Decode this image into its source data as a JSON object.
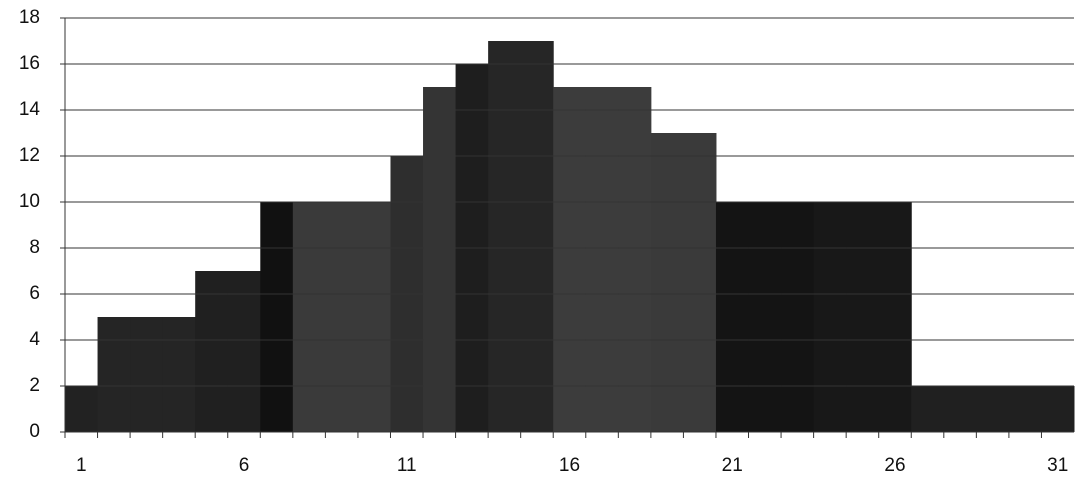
{
  "chart_data": {
    "type": "bar",
    "categories": [
      1,
      null,
      null,
      null,
      null,
      6,
      null,
      null,
      null,
      null,
      11,
      null,
      null,
      null,
      null,
      16,
      null,
      null,
      null,
      null,
      21,
      null,
      null,
      null,
      null,
      26,
      null,
      null,
      null,
      null,
      31
    ],
    "values": [
      2,
      5,
      5,
      5,
      7,
      7,
      10,
      10,
      10,
      10,
      12,
      15,
      16,
      17,
      17,
      15,
      15,
      15,
      13,
      13,
      10,
      10,
      10,
      10,
      10,
      10,
      2,
      2,
      2,
      2,
      2
    ],
    "colors": [
      "#222222",
      "#252525",
      "#252525",
      "#252525",
      "#202020",
      "#202020",
      "#111111",
      "#3a3a3a",
      "#3a3a3a",
      "#3a3a3a",
      "#2e2e2e",
      "#343434",
      "#1e1e1e",
      "#262626",
      "#262626",
      "#3c3c3c",
      "#3c3c3c",
      "#3c3c3c",
      "#3a3a3a",
      "#3a3a3a",
      "#141414",
      "#141414",
      "#141414",
      "#181818",
      "#181818",
      "#181818",
      "#202020",
      "#202020",
      "#202020",
      "#202020",
      "#202020"
    ],
    "ylim": [
      0,
      18
    ],
    "yticks": [
      0,
      2,
      4,
      6,
      8,
      10,
      12,
      14,
      16,
      18
    ],
    "grid": true
  }
}
